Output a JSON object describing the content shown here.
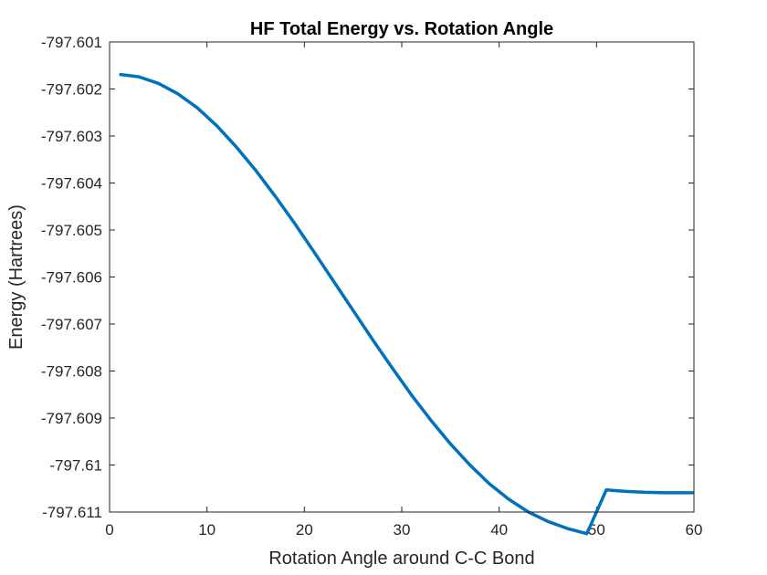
{
  "chart_data": {
    "type": "line",
    "title": "HF Total Energy vs. Rotation Angle",
    "xlabel": "Rotation Angle around C-C Bond",
    "ylabel": "Energy (Hartrees)",
    "xlim": [
      0,
      60
    ],
    "ylim": [
      -797.611,
      -797.601
    ],
    "xticks": [
      0,
      10,
      20,
      30,
      40,
      50,
      60
    ],
    "xtick_labels": [
      "0",
      "10",
      "20",
      "30",
      "40",
      "50",
      "60"
    ],
    "yticks": [
      -797.601,
      -797.602,
      -797.603,
      -797.604,
      -797.605,
      -797.606,
      -797.607,
      -797.608,
      -797.609,
      -797.61,
      -797.611
    ],
    "ytick_labels": [
      "-797.601",
      "-797.602",
      "-797.603",
      "-797.604",
      "-797.605",
      "-797.606",
      "-797.607",
      "-797.608",
      "-797.609",
      "-797.61",
      "-797.611"
    ],
    "grid": false,
    "line_color": "#0072BD",
    "series": [
      {
        "x": [
          1,
          3,
          5,
          7,
          9,
          11,
          13,
          15,
          17,
          19,
          21,
          23,
          25,
          27,
          29,
          31,
          33,
          35,
          37,
          39,
          41,
          43,
          45,
          47,
          49,
          51,
          53,
          55,
          57,
          59,
          60
        ],
        "y": [
          -797.60169,
          -797.60174,
          -797.60188,
          -797.6021,
          -797.6024,
          -797.60278,
          -797.60323,
          -797.60373,
          -797.60428,
          -797.60486,
          -797.60547,
          -797.60609,
          -797.60671,
          -797.60733,
          -797.60793,
          -797.60851,
          -797.60905,
          -797.60955,
          -797.61,
          -797.6104,
          -797.61073,
          -797.611,
          -797.6112,
          -797.61135,
          -797.61146,
          -797.61053,
          -797.61056,
          -797.61058,
          -797.61059,
          -797.61059,
          -797.61059
        ]
      }
    ]
  }
}
